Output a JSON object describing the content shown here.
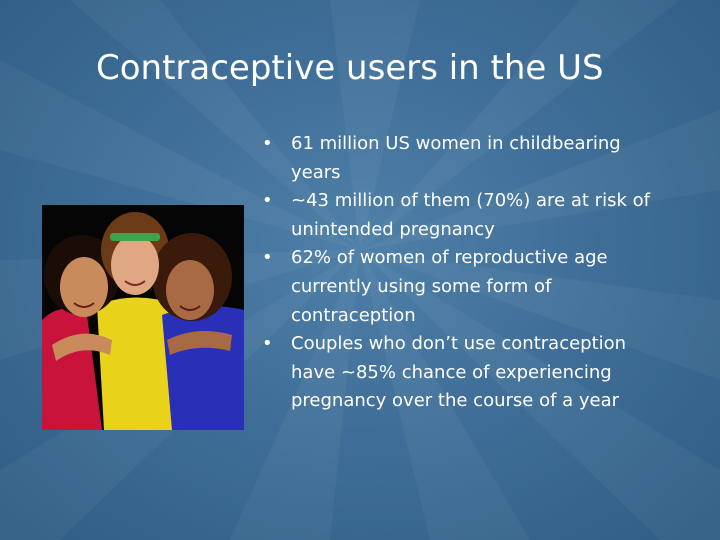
{
  "slide": {
    "title": "Contraceptive users in the US",
    "bullet_marker": "•",
    "bullets": [
      {
        "lines": [
          "61 million US women in childbearing",
          "years"
        ]
      },
      {
        "lines": [
          "~43 million of them (70%) are at risk of",
          "unintended pregnancy"
        ]
      },
      {
        "lines": [
          "62% of women of reproductive age",
          "currently using some form of",
          "contraception"
        ]
      },
      {
        "lines": [
          "Couples who don’t use contraception",
          "have ~85% chance of experiencing",
          "pregnancy over the course of a year"
        ]
      }
    ],
    "photo": {
      "subject": "photo-of-three-young-women"
    },
    "colors": {
      "background": "#3f6f98",
      "text": "#ffffff"
    }
  }
}
